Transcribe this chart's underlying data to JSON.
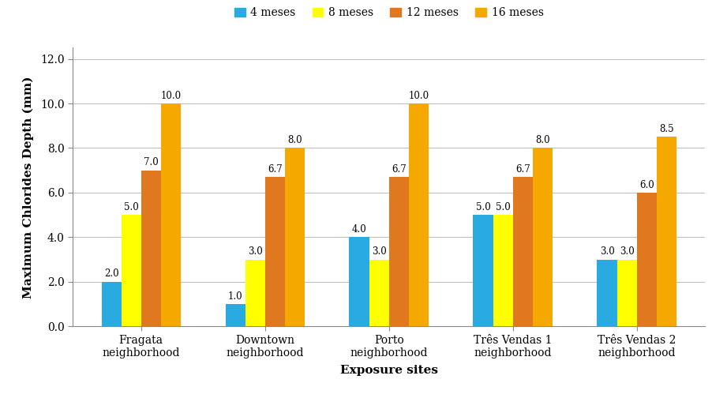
{
  "categories": [
    "Fragata\nneighborhood",
    "Downtown\nneighborhood",
    "Porto\nneighborhood",
    "Três Vendas 1\nneighborhood",
    "Três Vendas 2\nneighborhood"
  ],
  "series": {
    "4 meses": [
      2.0,
      1.0,
      4.0,
      5.0,
      3.0
    ],
    "8 meses": [
      5.0,
      3.0,
      3.0,
      5.0,
      3.0
    ],
    "12 meses": [
      7.0,
      6.7,
      6.7,
      6.7,
      6.0
    ],
    "16 meses": [
      10.0,
      8.0,
      10.0,
      8.0,
      8.5
    ]
  },
  "colors": {
    "4 meses": "#29ABE2",
    "8 meses": "#FFFF00",
    "12 meses": "#E07820",
    "16 meses": "#F5A800"
  },
  "legend_order": [
    "4 meses",
    "8 meses",
    "12 meses",
    "16 meses"
  ],
  "xlabel": "Exposure sites",
  "ylabel": "Maximum Chlorides Depth (mm)",
  "ylim": [
    0,
    12.5
  ],
  "yticks": [
    0.0,
    2.0,
    4.0,
    6.0,
    8.0,
    10.0,
    12.0
  ],
  "bar_width": 0.16,
  "axis_label_fontsize": 11,
  "tick_fontsize": 10,
  "legend_fontsize": 10,
  "value_fontsize": 8.5,
  "background_color": "#ffffff"
}
